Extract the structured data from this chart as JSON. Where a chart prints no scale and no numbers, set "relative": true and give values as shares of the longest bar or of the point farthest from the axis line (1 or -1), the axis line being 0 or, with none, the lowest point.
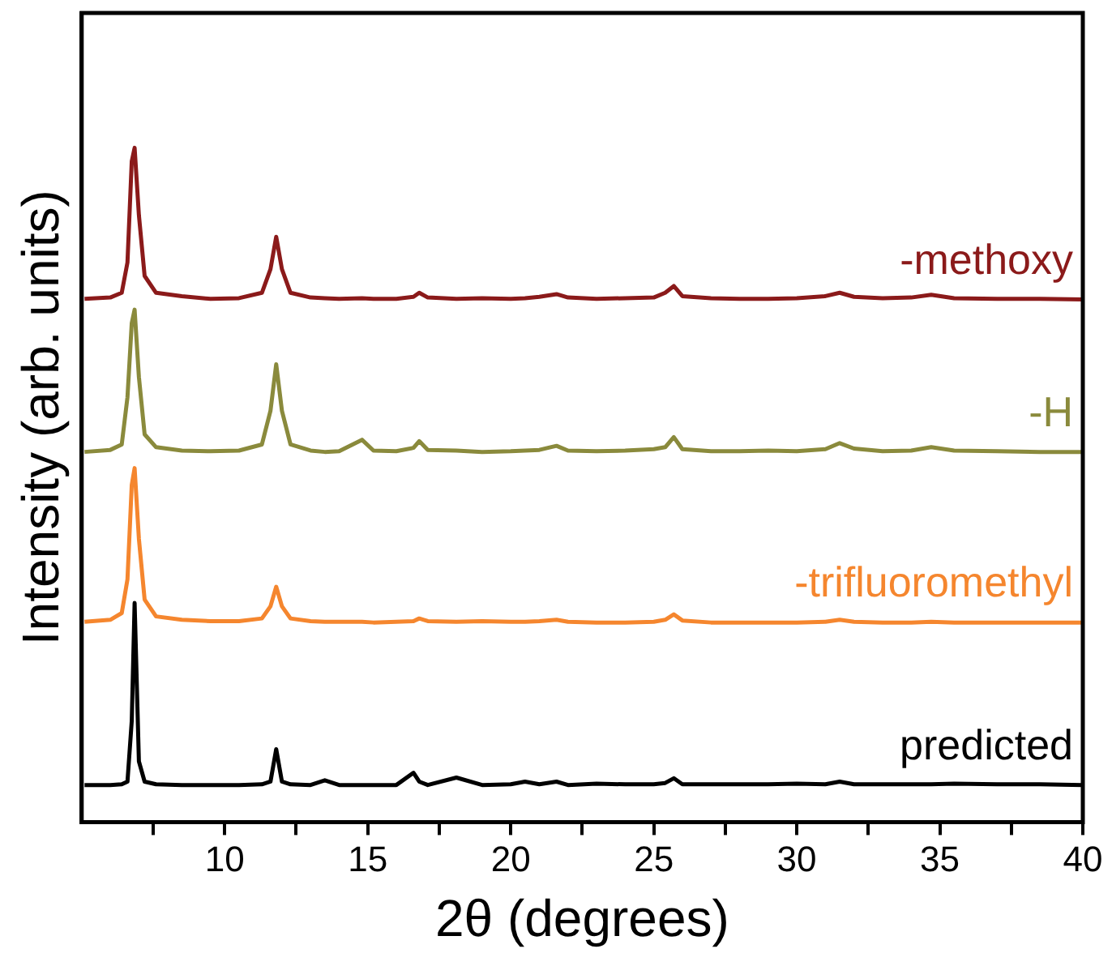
{
  "chart_data": {
    "type": "line",
    "xlabel": "2θ (degrees)",
    "ylabel": "Intensity (arb. units)",
    "relative": true,
    "xlim": [
      5,
      40
    ],
    "xticks": [
      {
        "value": 7.5,
        "label": null
      },
      10,
      {
        "value": 12.5,
        "label": null
      },
      15,
      {
        "value": 17.5,
        "label": null
      },
      20,
      {
        "value": 22.5,
        "label": null
      },
      25,
      {
        "value": 27.5,
        "label": null
      },
      30,
      {
        "value": 32.5,
        "label": null
      },
      35,
      {
        "value": 37.5,
        "label": null
      },
      40
    ],
    "x": [
      5.1,
      6.0,
      6.4,
      6.6,
      6.75,
      6.85,
      7.0,
      7.2,
      7.6,
      8.5,
      9.5,
      10.5,
      11.3,
      11.6,
      11.8,
      12.0,
      12.3,
      13.0,
      13.5,
      14.0,
      14.8,
      15.2,
      16.0,
      16.6,
      16.8,
      17.1,
      18.1,
      19,
      20,
      20.5,
      21,
      21.6,
      22,
      23,
      24,
      25,
      25.4,
      25.7,
      26.0,
      27,
      28,
      29,
      30,
      31,
      31.5,
      32,
      33,
      34,
      34.7,
      35.5,
      37,
      38.5,
      40
    ],
    "grid": false,
    "legend": false,
    "marker": "none",
    "line_style": "solid",
    "series": [
      {
        "name": "-methoxy",
        "color": "#8b1a1a",
        "values": [
          0.776,
          0.778,
          0.785,
          0.83,
          0.98,
          1.0,
          0.9,
          0.81,
          0.785,
          0.78,
          0.776,
          0.777,
          0.785,
          0.82,
          0.868,
          0.82,
          0.785,
          0.778,
          0.777,
          0.776,
          0.777,
          0.776,
          0.776,
          0.779,
          0.785,
          0.778,
          0.776,
          0.777,
          0.776,
          0.777,
          0.779,
          0.783,
          0.778,
          0.776,
          0.777,
          0.778,
          0.785,
          0.795,
          0.78,
          0.777,
          0.776,
          0.776,
          0.777,
          0.78,
          0.785,
          0.779,
          0.777,
          0.778,
          0.782,
          0.777,
          0.776,
          0.776,
          0.775
        ]
      },
      {
        "name": "-H",
        "color": "#8a8a3c",
        "values": [
          0.549,
          0.552,
          0.56,
          0.63,
          0.74,
          0.76,
          0.66,
          0.575,
          0.556,
          0.551,
          0.55,
          0.551,
          0.56,
          0.61,
          0.679,
          0.61,
          0.56,
          0.551,
          0.549,
          0.55,
          0.567,
          0.551,
          0.55,
          0.555,
          0.565,
          0.552,
          0.551,
          0.549,
          0.55,
          0.551,
          0.552,
          0.558,
          0.551,
          0.55,
          0.551,
          0.553,
          0.556,
          0.571,
          0.553,
          0.55,
          0.55,
          0.551,
          0.55,
          0.553,
          0.562,
          0.554,
          0.55,
          0.551,
          0.556,
          0.551,
          0.55,
          0.549,
          0.549
        ]
      },
      {
        "name": "-trifluoromethyl",
        "color": "#f5862e",
        "values": [
          0.297,
          0.3,
          0.31,
          0.36,
          0.5,
          0.525,
          0.42,
          0.33,
          0.305,
          0.3,
          0.298,
          0.298,
          0.302,
          0.32,
          0.349,
          0.32,
          0.302,
          0.298,
          0.297,
          0.297,
          0.297,
          0.296,
          0.297,
          0.298,
          0.302,
          0.298,
          0.297,
          0.298,
          0.297,
          0.297,
          0.298,
          0.3,
          0.297,
          0.296,
          0.296,
          0.297,
          0.3,
          0.308,
          0.299,
          0.296,
          0.296,
          0.296,
          0.296,
          0.297,
          0.3,
          0.297,
          0.296,
          0.296,
          0.297,
          0.296,
          0.296,
          0.296,
          0.296
        ]
      },
      {
        "name": "predicted",
        "color": "#000000",
        "values": [
          0.055,
          0.055,
          0.056,
          0.06,
          0.15,
          0.325,
          0.09,
          0.06,
          0.056,
          0.055,
          0.055,
          0.055,
          0.056,
          0.06,
          0.108,
          0.06,
          0.056,
          0.055,
          0.062,
          0.055,
          0.055,
          0.055,
          0.055,
          0.073,
          0.06,
          0.055,
          0.066,
          0.055,
          0.056,
          0.06,
          0.056,
          0.06,
          0.055,
          0.057,
          0.056,
          0.056,
          0.058,
          0.065,
          0.056,
          0.056,
          0.056,
          0.056,
          0.057,
          0.056,
          0.06,
          0.056,
          0.056,
          0.056,
          0.056,
          0.057,
          0.056,
          0.056,
          0.055
        ]
      }
    ]
  }
}
